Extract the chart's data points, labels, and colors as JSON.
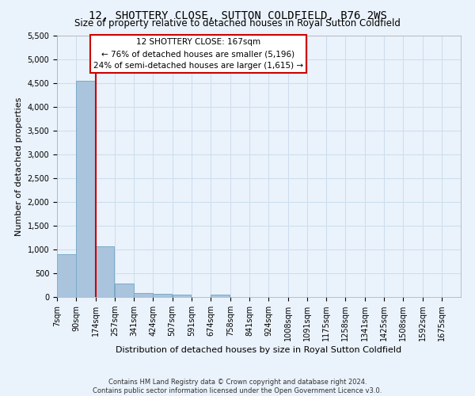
{
  "title": "12, SHOTTERY CLOSE, SUTTON COLDFIELD, B76 2WS",
  "subtitle": "Size of property relative to detached houses in Royal Sutton Coldfield",
  "xlabel": "Distribution of detached houses by size in Royal Sutton Coldfield",
  "ylabel": "Number of detached properties",
  "footer_line1": "Contains HM Land Registry data © Crown copyright and database right 2024.",
  "footer_line2": "Contains public sector information licensed under the Open Government Licence v3.0.",
  "annotation_title": "12 SHOTTERY CLOSE: 167sqm",
  "annotation_line1": "← 76% of detached houses are smaller (5,196)",
  "annotation_line2": "24% of semi-detached houses are larger (1,615) →",
  "property_size": 167,
  "bar_categories": [
    "7sqm",
    "90sqm",
    "174sqm",
    "257sqm",
    "341sqm",
    "424sqm",
    "507sqm",
    "591sqm",
    "674sqm",
    "758sqm",
    "841sqm",
    "924sqm",
    "1008sqm",
    "1091sqm",
    "1175sqm",
    "1258sqm",
    "1341sqm",
    "1425sqm",
    "1508sqm",
    "1592sqm",
    "1675sqm"
  ],
  "bar_edges": [
    7,
    90,
    174,
    257,
    341,
    424,
    507,
    591,
    674,
    758,
    841,
    924,
    1008,
    1091,
    1175,
    1258,
    1341,
    1425,
    1508,
    1592,
    1675
  ],
  "bar_heights": [
    900,
    4550,
    1070,
    290,
    85,
    60,
    50,
    0,
    55,
    0,
    0,
    0,
    0,
    0,
    0,
    0,
    0,
    0,
    0,
    0,
    0
  ],
  "bar_color": "#aac4dd",
  "bar_edge_color": "#7aaac8",
  "marker_line_color": "#cc0000",
  "ylim": [
    0,
    5500
  ],
  "yticks": [
    0,
    500,
    1000,
    1500,
    2000,
    2500,
    3000,
    3500,
    4000,
    4500,
    5000,
    5500
  ],
  "annotation_box_color": "#ffffff",
  "annotation_box_edge_color": "#cc0000",
  "grid_color": "#ccddee",
  "bg_color": "#eaf2fb",
  "title_fontsize": 10,
  "subtitle_fontsize": 8.5,
  "xlabel_fontsize": 8,
  "ylabel_fontsize": 8,
  "tick_fontsize": 7,
  "footer_fontsize": 6,
  "annot_fontsize": 7.5
}
